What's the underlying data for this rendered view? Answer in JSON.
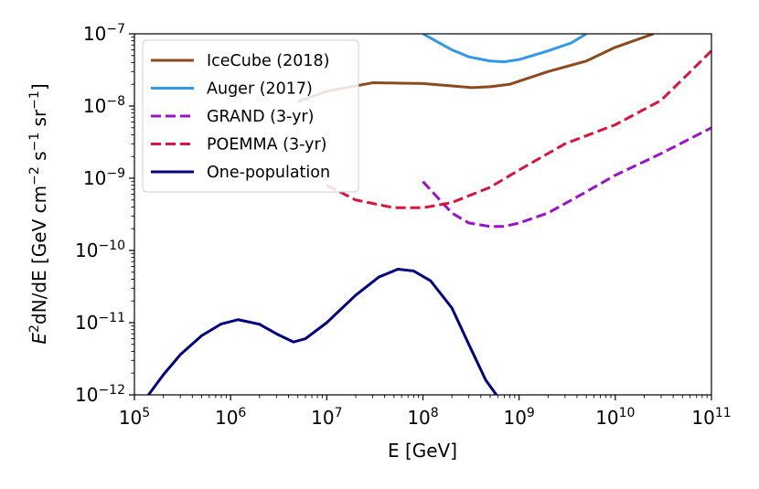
{
  "chart_data": {
    "type": "line",
    "xscale": "log",
    "yscale": "log",
    "xlim": [
      100000,
      100000000000
    ],
    "ylim": [
      1e-12,
      1e-07
    ],
    "xlabel": "E [GeV]",
    "ylabel": {
      "base": "E",
      "base_sup": "2",
      "main": "dN/dE [GeV cm",
      "sup1": "−2",
      "mid1": " s",
      "sup2": "−1",
      "mid2": " sr",
      "sup3": "−1",
      "end": "]"
    },
    "x_ticks": [
      {
        "value": 100000,
        "base": "10",
        "exp": "5"
      },
      {
        "value": 1000000,
        "base": "10",
        "exp": "6"
      },
      {
        "value": 10000000,
        "base": "10",
        "exp": "7"
      },
      {
        "value": 100000000,
        "base": "10",
        "exp": "8"
      },
      {
        "value": 1000000000,
        "base": "10",
        "exp": "9"
      },
      {
        "value": 10000000000,
        "base": "10",
        "exp": "10"
      },
      {
        "value": 100000000000,
        "base": "10",
        "exp": "11"
      }
    ],
    "y_ticks": [
      {
        "value": 1e-12,
        "base": "10",
        "exp": "−12"
      },
      {
        "value": 1e-11,
        "base": "10",
        "exp": "−11"
      },
      {
        "value": 1e-10,
        "base": "10",
        "exp": "−10"
      },
      {
        "value": 1e-09,
        "base": "10",
        "exp": "−9"
      },
      {
        "value": 1e-08,
        "base": "10",
        "exp": "−8"
      },
      {
        "value": 1e-07,
        "base": "10",
        "exp": "−7"
      }
    ],
    "legend_position": "top-left",
    "series": [
      {
        "name": "IceCube (2018)",
        "color": "#8c4a1e",
        "dash": "solid",
        "points": [
          [
            5000000.0,
            1.15e-08
          ],
          [
            10000000.0,
            1.6e-08
          ],
          [
            30000000.0,
            2.1e-08
          ],
          [
            100000000.0,
            2.05e-08
          ],
          [
            200000000.0,
            1.9e-08
          ],
          [
            320000000.0,
            1.8e-08
          ],
          [
            500000000.0,
            1.85e-08
          ],
          [
            800000000.0,
            2e-08
          ],
          [
            2000000000.0,
            3e-08
          ],
          [
            5000000000.0,
            4.2e-08
          ],
          [
            10000000000.0,
            6.5e-08
          ],
          [
            25000000000.0,
            1e-07
          ]
        ]
      },
      {
        "name": "Auger (2017)",
        "color": "#3399e6",
        "dash": "solid",
        "points": [
          [
            100000000.0,
            1e-07
          ],
          [
            200000000.0,
            6e-08
          ],
          [
            300000000.0,
            4.8e-08
          ],
          [
            500000000.0,
            4.2e-08
          ],
          [
            700000000.0,
            4.1e-08
          ],
          [
            1000000000.0,
            4.4e-08
          ],
          [
            2000000000.0,
            5.8e-08
          ],
          [
            3500000000.0,
            7.5e-08
          ],
          [
            5000000000.0,
            1e-07
          ]
        ]
      },
      {
        "name": "GRAND (3-yr)",
        "color": "#9b11cc",
        "dash": "dashed",
        "points": [
          [
            100000000.0,
            9e-10
          ],
          [
            150000000.0,
            5e-10
          ],
          [
            200000000.0,
            3.3e-10
          ],
          [
            300000000.0,
            2.4e-10
          ],
          [
            500000000.0,
            2.15e-10
          ],
          [
            700000000.0,
            2.15e-10
          ],
          [
            1000000000.0,
            2.4e-10
          ],
          [
            2000000000.0,
            3.3e-10
          ],
          [
            5000000000.0,
            6.5e-10
          ],
          [
            10000000000.0,
            1.1e-09
          ],
          [
            30000000000.0,
            2.2e-09
          ],
          [
            100000000000.0,
            5e-09
          ]
        ]
      },
      {
        "name": "POEMMA (3-yr)",
        "color": "#dc143c",
        "dash": "dashed",
        "points": [
          [
            10000000.0,
            8e-10
          ],
          [
            20000000.0,
            5e-10
          ],
          [
            50000000.0,
            3.9e-10
          ],
          [
            100000000.0,
            3.9e-10
          ],
          [
            200000000.0,
            4.6e-10
          ],
          [
            500000000.0,
            7.5e-10
          ],
          [
            1000000000.0,
            1.3e-09
          ],
          [
            3000000000.0,
            3e-09
          ],
          [
            10000000000.0,
            5.5e-09
          ],
          [
            30000000000.0,
            1.2e-08
          ],
          [
            100000000000.0,
            5.8e-08
          ]
        ]
      },
      {
        "name": "One-population",
        "color": "#000080",
        "dash": "solid",
        "points": [
          [
            140000.0,
            1e-12
          ],
          [
            200000.0,
            1.9e-12
          ],
          [
            300000.0,
            3.6e-12
          ],
          [
            500000.0,
            6.6e-12
          ],
          [
            800000.0,
            9.6e-12
          ],
          [
            1200000.0,
            1.1e-11
          ],
          [
            2000000.0,
            9.5e-12
          ],
          [
            3000000.0,
            7e-12
          ],
          [
            4500000.0,
            5.4e-12
          ],
          [
            6000000.0,
            6e-12
          ],
          [
            10000000.0,
            1e-11
          ],
          [
            20000000.0,
            2.4e-11
          ],
          [
            35000000.0,
            4.3e-11
          ],
          [
            55000000.0,
            5.5e-11
          ],
          [
            80000000.0,
            5.2e-11
          ],
          [
            120000000.0,
            3.8e-11
          ],
          [
            200000000.0,
            1.6e-11
          ],
          [
            300000000.0,
            5e-12
          ],
          [
            450000000.0,
            1.6e-12
          ],
          [
            580000000.0,
            1e-12
          ]
        ]
      }
    ]
  }
}
